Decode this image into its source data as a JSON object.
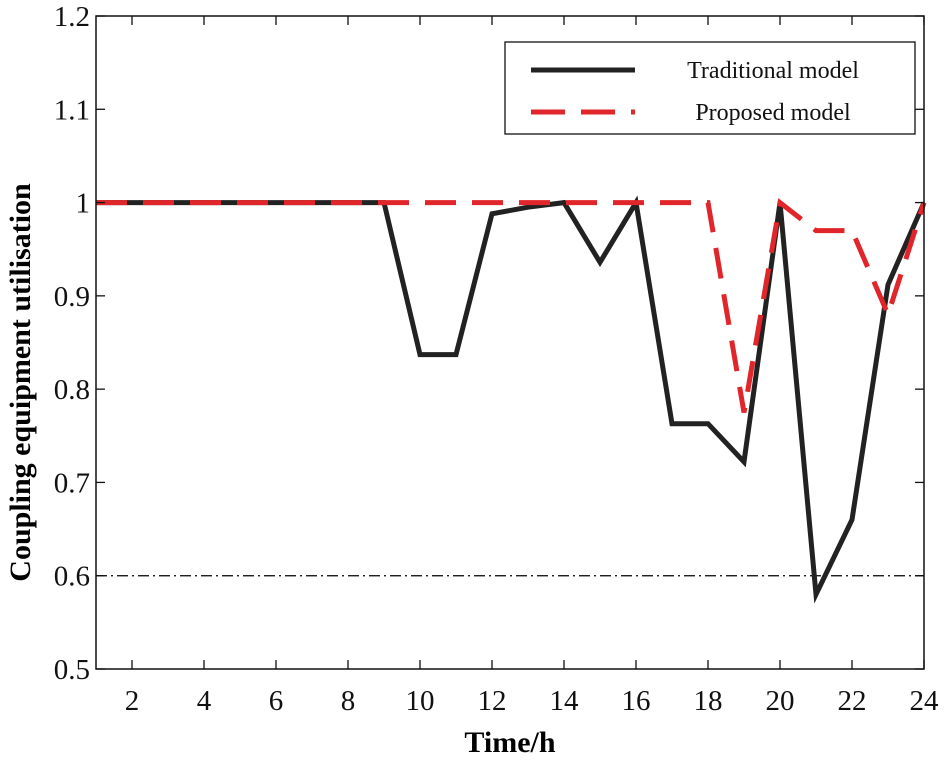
{
  "chart_data": {
    "type": "line",
    "xlabel": "Time/h",
    "ylabel": "Coupling equipment utilisation",
    "xlim": [
      1,
      24
    ],
    "ylim": [
      0.5,
      1.2
    ],
    "xticks": [
      2,
      4,
      6,
      8,
      10,
      12,
      14,
      16,
      18,
      20,
      22,
      24
    ],
    "xtick_labels": [
      "2",
      "4",
      "6",
      "8",
      "10",
      "12",
      "14",
      "16",
      "18",
      "20",
      "22",
      "24"
    ],
    "yticks": [
      0.5,
      0.6,
      0.7,
      0.8,
      0.9,
      1.0,
      1.1,
      1.2
    ],
    "ytick_labels": [
      "0.5",
      "0.6",
      "0.7",
      "0.8",
      "0.9",
      "1",
      "1.1",
      "1.2"
    ],
    "grid": false,
    "legend_position": "top-right",
    "x": [
      1,
      2,
      3,
      4,
      5,
      6,
      7,
      8,
      9,
      10,
      11,
      12,
      13,
      14,
      15,
      16,
      17,
      18,
      19,
      20,
      21,
      22,
      23,
      24
    ],
    "series": [
      {
        "name": "Traditional model",
        "style": "solid",
        "color": "#222222",
        "values": [
          1,
          1,
          1,
          1,
          1,
          1,
          1,
          1,
          1,
          0.837,
          0.837,
          0.988,
          0.995,
          1,
          0.936,
          1,
          0.763,
          0.763,
          0.722,
          1,
          0.58,
          0.66,
          0.912,
          1
        ]
      },
      {
        "name": "Proposed model",
        "style": "dashed",
        "color": "#e0262a",
        "values": [
          1,
          1,
          1,
          1,
          1,
          1,
          1,
          1,
          1,
          1,
          1,
          1,
          1,
          1,
          1,
          1,
          1,
          1,
          0.775,
          1,
          0.97,
          0.97,
          0.88,
          1
        ]
      }
    ],
    "reference_line": {
      "y": 0.6,
      "style": "dash-dot",
      "color": "#000000"
    }
  }
}
